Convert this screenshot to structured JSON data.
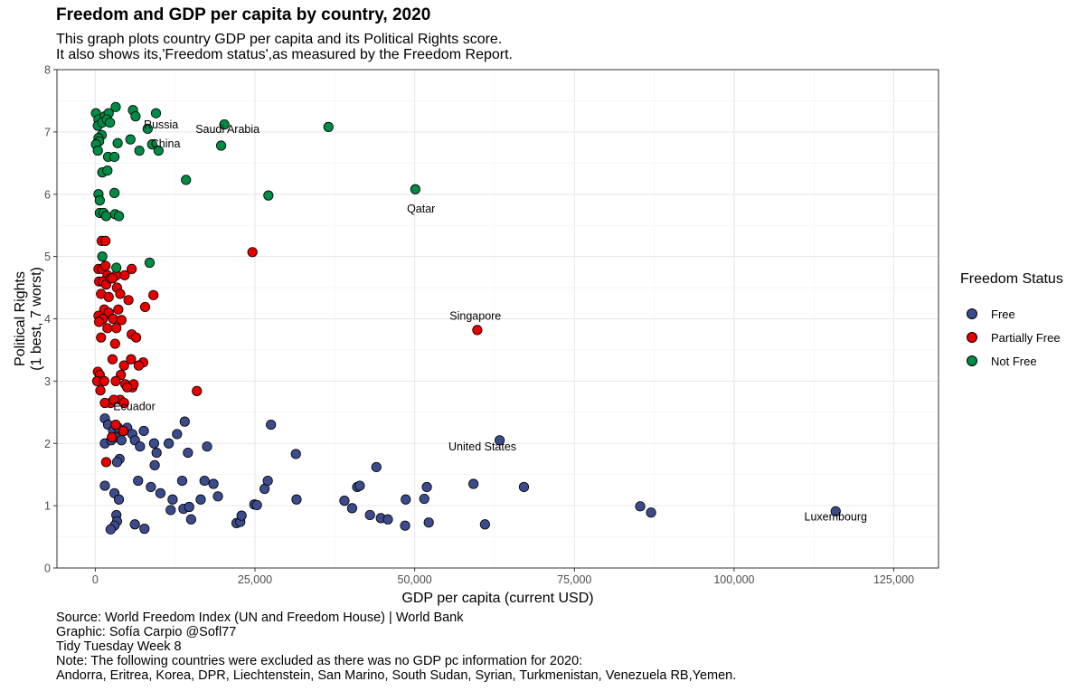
{
  "title": "Freedom and GDP per capita by country, 2020",
  "subtitle": [
    "This graph plots country GDP per capita and its Political Rights score.",
    "It also shows its,'Freedom status',as measured by the Freedom Report."
  ],
  "caption": [
    "Source: World Freedom Index (UN and Freedom House) | World Bank",
    "Graphic: Sofía Carpio @Sofl77",
    "Tidy Tuesday Week 8",
    "Note: The following countries were excluded as there was no GDP pc information for 2020:",
    "Andorra, Eritrea, Korea, DPR, Liechtenstein, San Marino, South Sudan, Syrian, Turkmenistan, Venezuela RB,Yemen."
  ],
  "legend": {
    "title": "Freedom Status",
    "items": [
      {
        "label": "Free",
        "color": "#3b4b8c"
      },
      {
        "label": "Partially Free",
        "color": "#e60000"
      },
      {
        "label": "Not Free",
        "color": "#008b45"
      }
    ]
  },
  "chart_data": {
    "type": "scatter",
    "xlabel": "GDP per capita (current USD)",
    "ylabel": [
      "Political Rights",
      "(1 best, 7 worst)"
    ],
    "xlim": [
      -6000,
      132000
    ],
    "ylim": [
      0,
      8
    ],
    "xticks": [
      0,
      25000,
      50000,
      75000,
      100000,
      125000
    ],
    "xtick_labels": [
      "0",
      "25,000",
      "50,000",
      "75,000",
      "100,000",
      "125,000"
    ],
    "yticks": [
      0,
      1,
      2,
      3,
      4,
      5,
      6,
      7,
      8
    ],
    "grid": true,
    "legend_position": "right",
    "series": [
      {
        "name": "Free",
        "color": "#3b4b8c",
        "points": [
          [
            1500,
            2.4
          ],
          [
            2000,
            2.3
          ],
          [
            2800,
            2.2
          ],
          [
            3200,
            2.1
          ],
          [
            3600,
            2.25
          ],
          [
            4100,
            2.05
          ],
          [
            4500,
            2.2
          ],
          [
            5000,
            2.25
          ],
          [
            5800,
            2.15
          ],
          [
            6200,
            2.05
          ],
          [
            7000,
            1.95
          ],
          [
            7600,
            2.2
          ],
          [
            9200,
            2.0
          ],
          [
            9600,
            1.85
          ],
          [
            11500,
            2.0
          ],
          [
            12800,
            2.15
          ],
          [
            14000,
            2.35
          ],
          [
            14500,
            1.85
          ],
          [
            17500,
            1.95
          ],
          [
            27500,
            2.3
          ],
          [
            1500,
            2.0
          ],
          [
            2500,
            2.05
          ],
          [
            3800,
            1.75
          ],
          [
            9300,
            1.65
          ],
          [
            3400,
            1.7
          ],
          [
            31400,
            1.83
          ],
          [
            44000,
            1.62
          ],
          [
            63300,
            2.05
          ],
          [
            1500,
            1.32
          ],
          [
            3000,
            1.2
          ],
          [
            3700,
            1.1
          ],
          [
            6700,
            1.4
          ],
          [
            8700,
            1.3
          ],
          [
            10200,
            1.2
          ],
          [
            12100,
            1.1
          ],
          [
            13600,
            1.4
          ],
          [
            13800,
            0.95
          ],
          [
            14700,
            0.98
          ],
          [
            16500,
            1.1
          ],
          [
            17100,
            1.4
          ],
          [
            18500,
            1.35
          ],
          [
            19200,
            1.15
          ],
          [
            24900,
            1.02
          ],
          [
            25300,
            1.01
          ],
          [
            26500,
            1.27
          ],
          [
            27000,
            1.4
          ],
          [
            31500,
            1.1
          ],
          [
            39000,
            1.08
          ],
          [
            40200,
            0.96
          ],
          [
            41000,
            1.3
          ],
          [
            41400,
            1.32
          ],
          [
            43000,
            0.85
          ],
          [
            44700,
            0.8
          ],
          [
            45800,
            0.78
          ],
          [
            48600,
            1.1
          ],
          [
            51500,
            1.11
          ],
          [
            51900,
            1.3
          ],
          [
            52200,
            0.73
          ],
          [
            59200,
            1.35
          ],
          [
            67100,
            1.3
          ],
          [
            85300,
            0.99
          ],
          [
            87000,
            0.89
          ],
          [
            115900,
            0.91
          ],
          [
            3300,
            0.85
          ],
          [
            3400,
            0.75
          ],
          [
            3000,
            0.68
          ],
          [
            6200,
            0.7
          ],
          [
            7700,
            0.63
          ],
          [
            2400,
            0.62
          ],
          [
            15000,
            0.78
          ],
          [
            22100,
            0.72
          ],
          [
            22700,
            0.74
          ],
          [
            22900,
            0.84
          ],
          [
            48500,
            0.68
          ],
          [
            61000,
            0.7
          ],
          [
            11800,
            0.93
          ]
        ]
      },
      {
        "name": "Partially Free",
        "color": "#e60000",
        "points": [
          [
            1000,
            5.25
          ],
          [
            1600,
            5.25
          ],
          [
            500,
            4.8
          ],
          [
            1100,
            4.8
          ],
          [
            1600,
            4.85
          ],
          [
            1900,
            4.7
          ],
          [
            600,
            4.6
          ],
          [
            1200,
            4.6
          ],
          [
            1700,
            4.55
          ],
          [
            2400,
            4.65
          ],
          [
            3300,
            4.7
          ],
          [
            2700,
            4.65
          ],
          [
            3400,
            4.5
          ],
          [
            4600,
            4.7
          ],
          [
            5700,
            4.8
          ],
          [
            24600,
            5.07
          ],
          [
            900,
            4.4
          ],
          [
            2100,
            4.35
          ],
          [
            3900,
            4.4
          ],
          [
            5200,
            4.3
          ],
          [
            9100,
            4.38
          ],
          [
            1400,
            4.15
          ],
          [
            2100,
            4.1
          ],
          [
            3600,
            4.15
          ],
          [
            7800,
            4.19
          ],
          [
            500,
            4.05
          ],
          [
            1200,
            4.0
          ],
          [
            2800,
            4.0
          ],
          [
            4100,
            3.98
          ],
          [
            600,
            3.95
          ],
          [
            1900,
            3.85
          ],
          [
            3300,
            3.85
          ],
          [
            5700,
            3.75
          ],
          [
            6400,
            3.7
          ],
          [
            900,
            3.7
          ],
          [
            3100,
            3.6
          ],
          [
            59800,
            3.82
          ],
          [
            400,
            3.15
          ],
          [
            700,
            3.1
          ],
          [
            2700,
            3.35
          ],
          [
            4500,
            3.25
          ],
          [
            5600,
            3.35
          ],
          [
            7500,
            3.3
          ],
          [
            6800,
            3.25
          ],
          [
            4000,
            3.1
          ],
          [
            300,
            3.0
          ],
          [
            1400,
            3.0
          ],
          [
            3200,
            3.0
          ],
          [
            4700,
            2.95
          ],
          [
            5800,
            2.9
          ],
          [
            6000,
            2.95
          ],
          [
            800,
            2.85
          ],
          [
            5000,
            2.9
          ],
          [
            2400,
            2.65
          ],
          [
            3900,
            2.7
          ],
          [
            4500,
            2.65
          ],
          [
            2900,
            2.7
          ],
          [
            1500,
            2.65
          ],
          [
            15900,
            2.84
          ],
          [
            3200,
            2.3
          ],
          [
            4400,
            2.2
          ],
          [
            2600,
            2.1
          ],
          [
            1700,
            1.7
          ]
        ]
      },
      {
        "name": "Not Free",
        "color": "#008b45",
        "points": [
          [
            100,
            7.3
          ],
          [
            500,
            7.2
          ],
          [
            400,
            7.1
          ],
          [
            1500,
            7.25
          ],
          [
            2100,
            7.3
          ],
          [
            3200,
            7.4
          ],
          [
            5900,
            7.35
          ],
          [
            6300,
            7.25
          ],
          [
            9500,
            7.3
          ],
          [
            1100,
            7.15
          ],
          [
            1800,
            7.2
          ],
          [
            2300,
            7.15
          ],
          [
            8200,
            7.05
          ],
          [
            20200,
            7.12
          ],
          [
            36500,
            7.08
          ],
          [
            1000,
            6.95
          ],
          [
            500,
            6.9
          ],
          [
            600,
            6.85
          ],
          [
            3500,
            6.82
          ],
          [
            5500,
            6.88
          ],
          [
            8900,
            6.8
          ],
          [
            9900,
            6.7
          ],
          [
            6900,
            6.7
          ],
          [
            19700,
            6.78
          ],
          [
            100,
            6.8
          ],
          [
            400,
            6.7
          ],
          [
            2000,
            6.6
          ],
          [
            3000,
            6.6
          ],
          [
            1100,
            6.35
          ],
          [
            14200,
            6.23
          ],
          [
            27100,
            5.98
          ],
          [
            50100,
            6.08
          ],
          [
            1900,
            6.38
          ],
          [
            500,
            6.0
          ],
          [
            700,
            5.9
          ],
          [
            3000,
            6.02
          ],
          [
            700,
            5.7
          ],
          [
            1300,
            5.7
          ],
          [
            3100,
            5.68
          ],
          [
            3700,
            5.65
          ],
          [
            1700,
            5.65
          ],
          [
            8500,
            4.9
          ],
          [
            1100,
            5.0
          ],
          [
            3300,
            4.82
          ]
        ]
      }
    ],
    "annotations": [
      {
        "text": "Russia",
        "x": 10300,
        "y": 7.12
      },
      {
        "text": "Saudi Arabia",
        "x": 20700,
        "y": 7.05
      },
      {
        "text": "China",
        "x": 11000,
        "y": 6.82
      },
      {
        "text": "Qatar",
        "x": 51000,
        "y": 5.77
      },
      {
        "text": "Singapore",
        "x": 59500,
        "y": 4.05
      },
      {
        "text": "Ecuador",
        "x": 6100,
        "y": 2.6
      },
      {
        "text": "United States",
        "x": 60600,
        "y": 1.95
      },
      {
        "text": "Luxembourg",
        "x": 115900,
        "y": 0.83
      }
    ]
  }
}
